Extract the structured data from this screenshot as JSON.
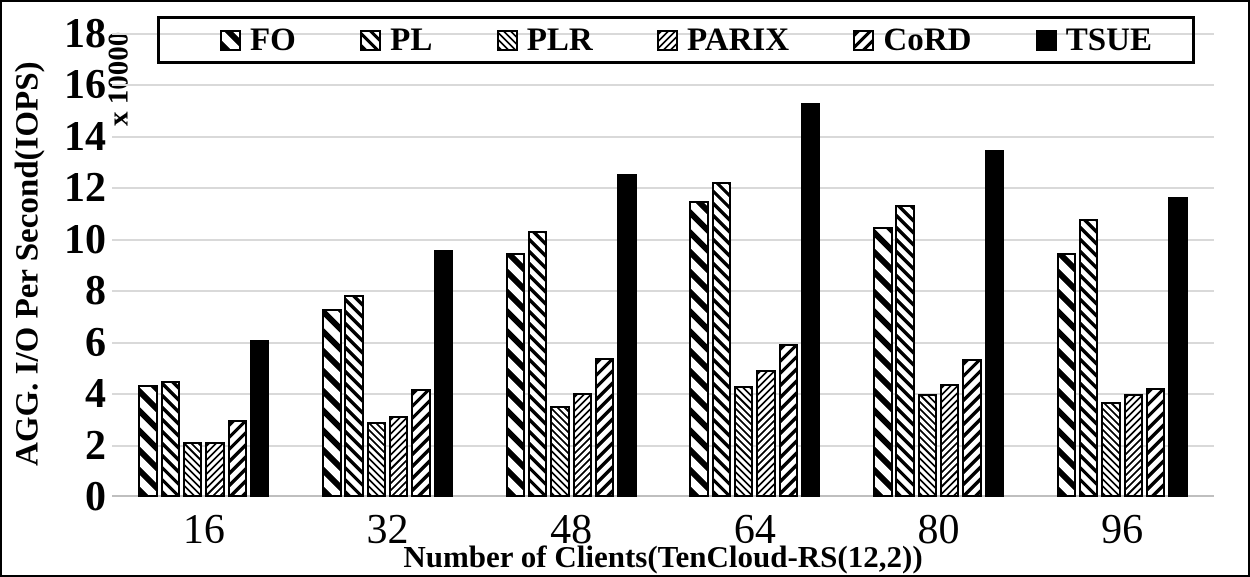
{
  "chart_data": {
    "type": "bar",
    "title": "",
    "xlabel": "Number of Clients(TenCloud-RS(12,2))",
    "ylabel": "AGG. I/O Per Second(IOPS)",
    "y_multiplier_label": "x 10000",
    "categories": [
      "16",
      "32",
      "48",
      "64",
      "80",
      "96"
    ],
    "series": [
      {
        "name": "FO",
        "pattern": "diag-back-wide",
        "values": [
          4.35,
          7.3,
          9.5,
          11.5,
          10.5,
          9.5
        ]
      },
      {
        "name": "PL",
        "pattern": "diag-back-medium",
        "values": [
          4.5,
          7.85,
          10.35,
          12.25,
          11.35,
          10.8
        ]
      },
      {
        "name": "PLR",
        "pattern": "diag-back-fine",
        "values": [
          2.15,
          2.9,
          3.55,
          4.3,
          4.0,
          3.7
        ]
      },
      {
        "name": "PARIX",
        "pattern": "diag-fwd-fine",
        "values": [
          2.15,
          3.15,
          4.05,
          4.95,
          4.4,
          4.0
        ]
      },
      {
        "name": "CoRD",
        "pattern": "diag-fwd-medium",
        "values": [
          3.0,
          4.2,
          5.4,
          5.95,
          5.35,
          4.25
        ]
      },
      {
        "name": "TSUE",
        "pattern": "solid-black",
        "values": [
          6.1,
          9.6,
          12.55,
          15.3,
          13.5,
          11.65
        ]
      }
    ],
    "ylim": [
      0,
      18
    ],
    "ytick_step": 2,
    "grid": true,
    "legend_position": "top",
    "colors": {
      "bar": "#000000",
      "gridline": "#d9d9d9",
      "axis_line": "#bfbfbf",
      "text": "#000000",
      "background": "#ffffff"
    }
  }
}
